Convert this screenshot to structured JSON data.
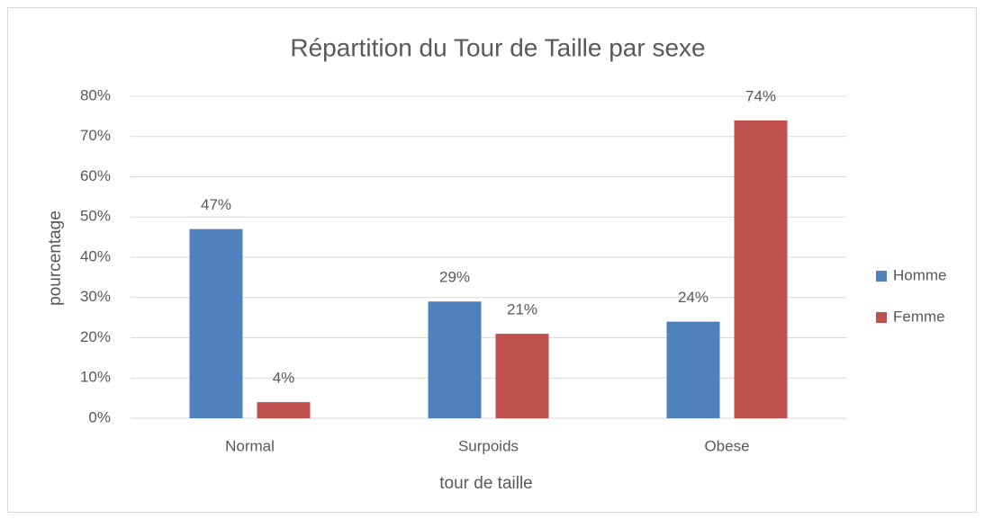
{
  "chart_data": {
    "type": "bar",
    "title": "Répartition du Tour de Taille par sexe",
    "xlabel": "tour de taille",
    "ylabel": "pourcentage",
    "categories": [
      "Normal",
      "Surpoids",
      "Obese"
    ],
    "series": [
      {
        "name": "Homme",
        "color": "#4f81bd",
        "values": [
          47,
          29,
          24
        ],
        "value_labels": [
          "47%",
          "29%",
          "24%"
        ]
      },
      {
        "name": "Femme",
        "color": "#c0504d",
        "values": [
          4,
          21,
          74
        ],
        "value_labels": [
          "4%",
          "21%",
          "74%"
        ]
      }
    ],
    "ylim": [
      0,
      80
    ],
    "yticks": [
      {
        "value": 0,
        "label": "0%"
      },
      {
        "value": 10,
        "label": "10%"
      },
      {
        "value": 20,
        "label": "20%"
      },
      {
        "value": 30,
        "label": "30%"
      },
      {
        "value": 40,
        "label": "40%"
      },
      {
        "value": 50,
        "label": "50%"
      },
      {
        "value": 60,
        "label": "60%"
      },
      {
        "value": 70,
        "label": "70%"
      },
      {
        "value": 80,
        "label": "80%"
      }
    ],
    "grid": true,
    "legend": "right"
  }
}
